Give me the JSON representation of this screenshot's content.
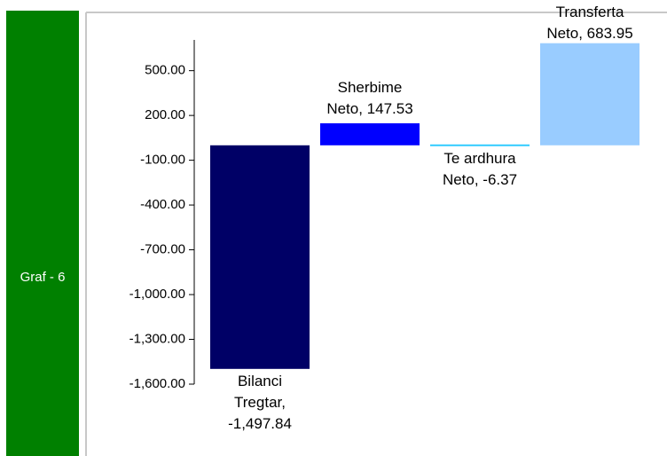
{
  "sidebar": "Graf - 6",
  "chart_data": {
    "type": "bar",
    "values": [
      -1497.84,
      147.53,
      -6.37,
      683.95
    ],
    "value_labels": [
      "Bilanci Tregtar, -1,497.84",
      "Sherbime Neto, 147.53",
      "Te ardhura Neto, -6.37",
      "Transferta Neto, 683.95"
    ],
    "colors": [
      "#000066",
      "#0000ff",
      "#33ccff",
      "#99ccff"
    ],
    "ylim": [
      -1600,
      700
    ],
    "yticks": [
      {
        "value": 500,
        "label": "500.00"
      },
      {
        "value": 200,
        "label": "200.00"
      },
      {
        "value": -100,
        "label": "-100.00"
      },
      {
        "value": -400,
        "label": "-400.00"
      },
      {
        "value": -700,
        "label": "-700.00"
      },
      {
        "value": -1000,
        "label": "-1,000.00"
      },
      {
        "value": -1300,
        "label": "-1,300.00"
      },
      {
        "value": -1600,
        "label": "-1,600.00"
      }
    ],
    "grid": false
  }
}
